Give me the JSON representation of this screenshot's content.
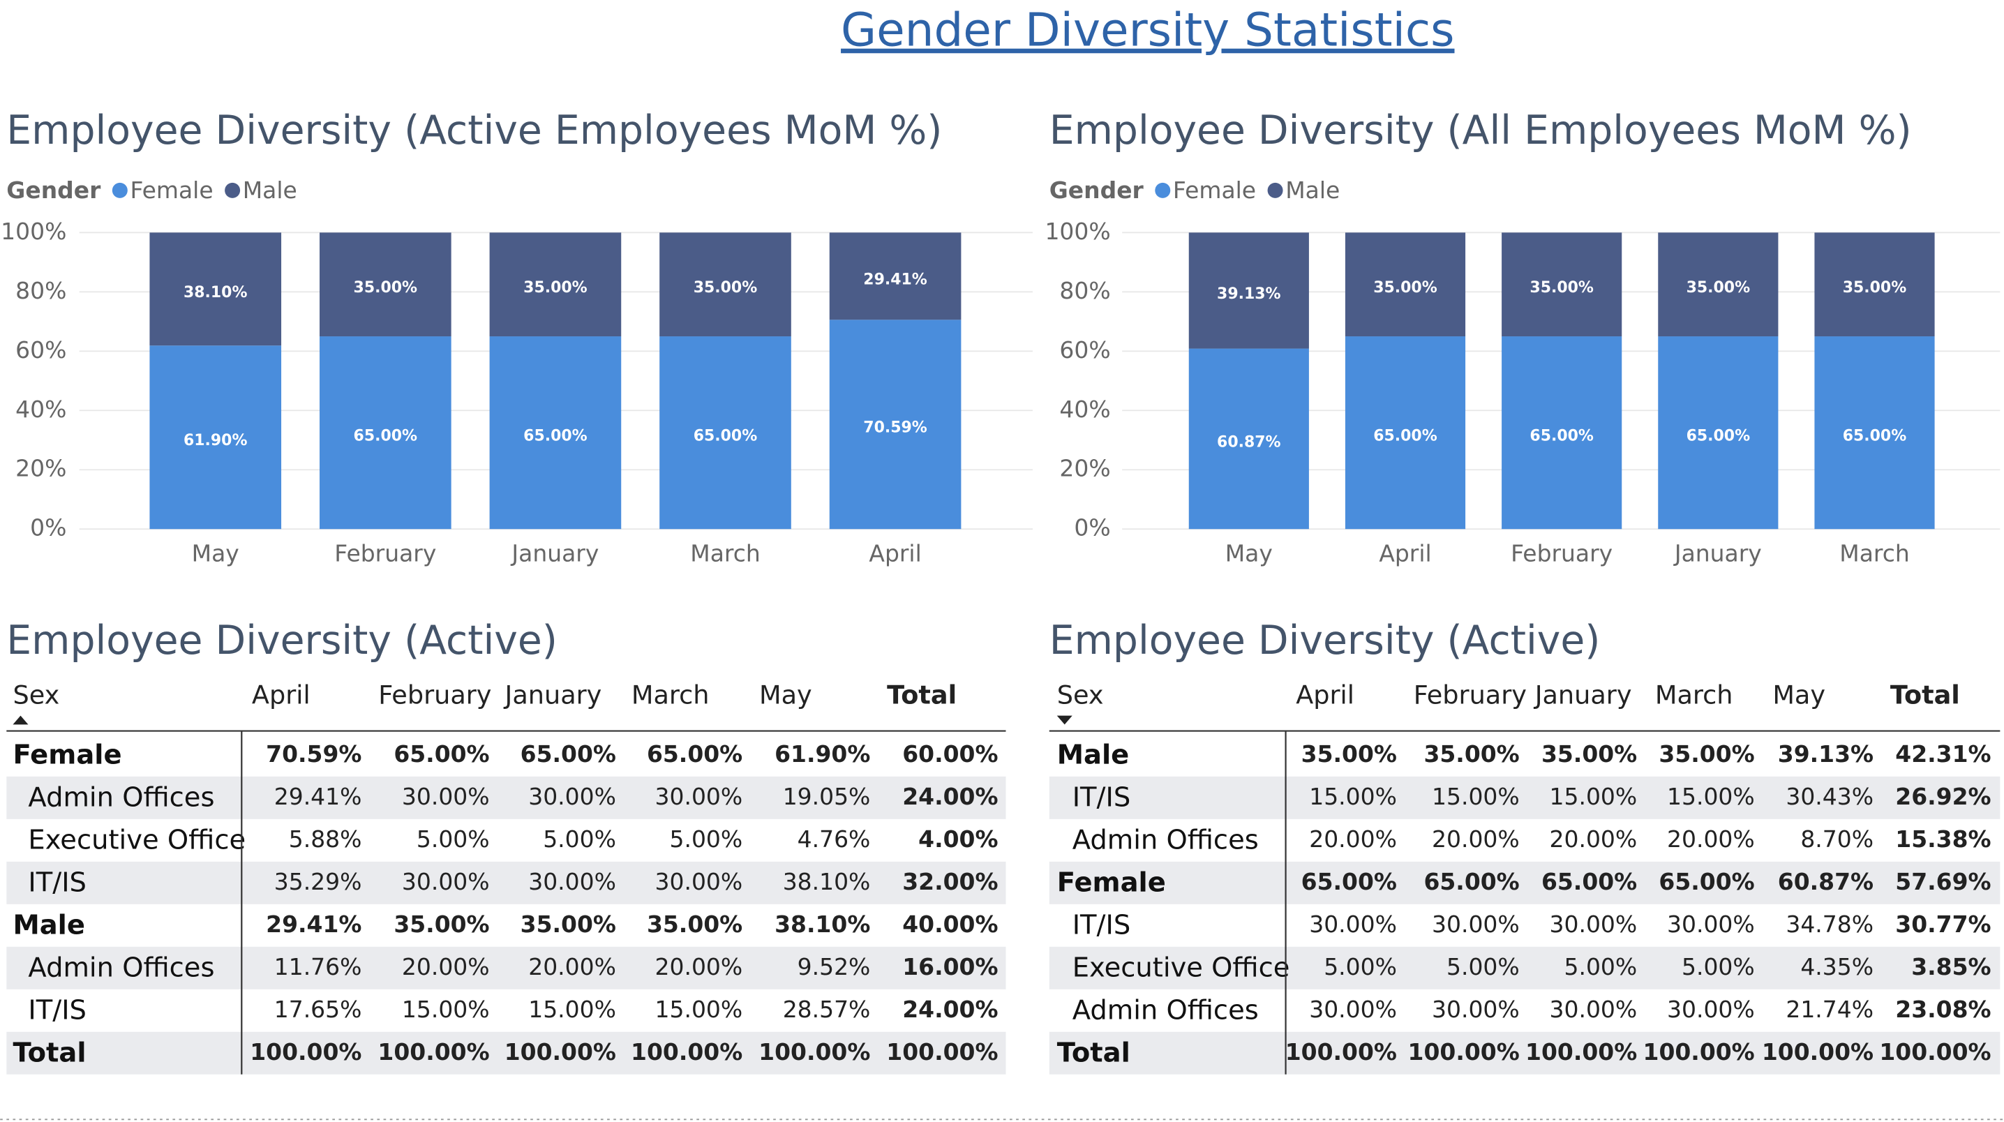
{
  "title": "Gender Diversity Statistics",
  "chart_data": [
    {
      "type": "bar",
      "stacked": true,
      "title": "Employee Diversity (Active Employees MoM %)",
      "legend_title": "Gender",
      "categories": [
        "May",
        "February",
        "January",
        "March",
        "April"
      ],
      "series": [
        {
          "name": "Female",
          "color": "#4a8ddc",
          "values": [
            61.9,
            65,
            65,
            65,
            70.59
          ],
          "value_labels": [
            "61.90%",
            "65.00%",
            "65.00%",
            "65.00%",
            "70.59%"
          ]
        },
        {
          "name": "Male",
          "color": "#4b5c88",
          "values": [
            38.1,
            35,
            35,
            35,
            29.41
          ],
          "value_labels": [
            "38.10%",
            "35.00%",
            "35.00%",
            "35.00%",
            "29.41%"
          ]
        }
      ],
      "ylim": [
        0,
        100
      ],
      "yticks": [
        {
          "value": 0,
          "label": "0%"
        },
        {
          "value": 20,
          "label": "20%"
        },
        {
          "value": 40,
          "label": "40%"
        },
        {
          "value": 60,
          "label": "60%"
        },
        {
          "value": 80,
          "label": "80%"
        },
        {
          "value": 100,
          "label": "100%"
        }
      ],
      "grid": true
    },
    {
      "type": "bar",
      "stacked": true,
      "title": "Employee Diversity (All Employees MoM %)",
      "legend_title": "Gender",
      "categories": [
        "May",
        "April",
        "February",
        "January",
        "March"
      ],
      "series": [
        {
          "name": "Female",
          "color": "#4a8ddc",
          "values": [
            60.87,
            65,
            65,
            65,
            65
          ],
          "value_labels": [
            "60.87%",
            "65.00%",
            "65.00%",
            "65.00%",
            "65.00%"
          ]
        },
        {
          "name": "Male",
          "color": "#4b5c88",
          "values": [
            39.13,
            35,
            35,
            35,
            35
          ],
          "value_labels": [
            "39.13%",
            "35.00%",
            "35.00%",
            "35.00%",
            "35.00%"
          ]
        }
      ],
      "ylim": [
        0,
        100
      ],
      "yticks": [
        {
          "value": 0,
          "label": "0%"
        },
        {
          "value": 20,
          "label": "20%"
        },
        {
          "value": 40,
          "label": "40%"
        },
        {
          "value": 60,
          "label": "60%"
        },
        {
          "value": 80,
          "label": "80%"
        },
        {
          "value": 100,
          "label": "100%"
        }
      ],
      "grid": true
    }
  ],
  "tables": [
    {
      "title": "Employee Diversity (Active)",
      "sort": "ascending",
      "columns": [
        "Sex",
        "April",
        "February",
        "January",
        "March",
        "May",
        "Total"
      ],
      "rows": [
        {
          "level": "group",
          "cells": [
            "Female",
            "70.59%",
            "65.00%",
            "65.00%",
            "65.00%",
            "61.90%",
            "60.00%"
          ]
        },
        {
          "level": "item",
          "cells": [
            "Admin Offices",
            "29.41%",
            "30.00%",
            "30.00%",
            "30.00%",
            "19.05%",
            "24.00%"
          ]
        },
        {
          "level": "item",
          "cells": [
            "Executive Office",
            "5.88%",
            "5.00%",
            "5.00%",
            "5.00%",
            "4.76%",
            "4.00%"
          ]
        },
        {
          "level": "item",
          "cells": [
            "IT/IS",
            "35.29%",
            "30.00%",
            "30.00%",
            "30.00%",
            "38.10%",
            "32.00%"
          ]
        },
        {
          "level": "group",
          "cells": [
            "Male",
            "29.41%",
            "35.00%",
            "35.00%",
            "35.00%",
            "38.10%",
            "40.00%"
          ]
        },
        {
          "level": "item",
          "cells": [
            "Admin Offices",
            "11.76%",
            "20.00%",
            "20.00%",
            "20.00%",
            "9.52%",
            "16.00%"
          ]
        },
        {
          "level": "item",
          "cells": [
            "IT/IS",
            "17.65%",
            "15.00%",
            "15.00%",
            "15.00%",
            "28.57%",
            "24.00%"
          ]
        },
        {
          "level": "total",
          "cells": [
            "Total",
            "100.00%",
            "100.00%",
            "100.00%",
            "100.00%",
            "100.00%",
            "100.00%"
          ]
        }
      ]
    },
    {
      "title": "Employee Diversity (Active)",
      "sort": "descending",
      "columns": [
        "Sex",
        "April",
        "February",
        "January",
        "March",
        "May",
        "Total"
      ],
      "rows": [
        {
          "level": "group",
          "cells": [
            "Male",
            "35.00%",
            "35.00%",
            "35.00%",
            "35.00%",
            "39.13%",
            "42.31%"
          ]
        },
        {
          "level": "item",
          "cells": [
            "IT/IS",
            "15.00%",
            "15.00%",
            "15.00%",
            "15.00%",
            "30.43%",
            "26.92%"
          ]
        },
        {
          "level": "item",
          "cells": [
            "Admin Offices",
            "20.00%",
            "20.00%",
            "20.00%",
            "20.00%",
            "8.70%",
            "15.38%"
          ]
        },
        {
          "level": "group",
          "cells": [
            "Female",
            "65.00%",
            "65.00%",
            "65.00%",
            "65.00%",
            "60.87%",
            "57.69%"
          ]
        },
        {
          "level": "item",
          "cells": [
            "IT/IS",
            "30.00%",
            "30.00%",
            "30.00%",
            "30.00%",
            "34.78%",
            "30.77%"
          ]
        },
        {
          "level": "item",
          "cells": [
            "Executive Office",
            "5.00%",
            "5.00%",
            "5.00%",
            "5.00%",
            "4.35%",
            "3.85%"
          ]
        },
        {
          "level": "item",
          "cells": [
            "Admin Offices",
            "30.00%",
            "30.00%",
            "30.00%",
            "30.00%",
            "21.74%",
            "23.08%"
          ]
        },
        {
          "level": "total",
          "cells": [
            "Total",
            "100.00%",
            "100.00%",
            "100.00%",
            "100.00%",
            "100.00%",
            "100.00%"
          ]
        }
      ]
    }
  ]
}
